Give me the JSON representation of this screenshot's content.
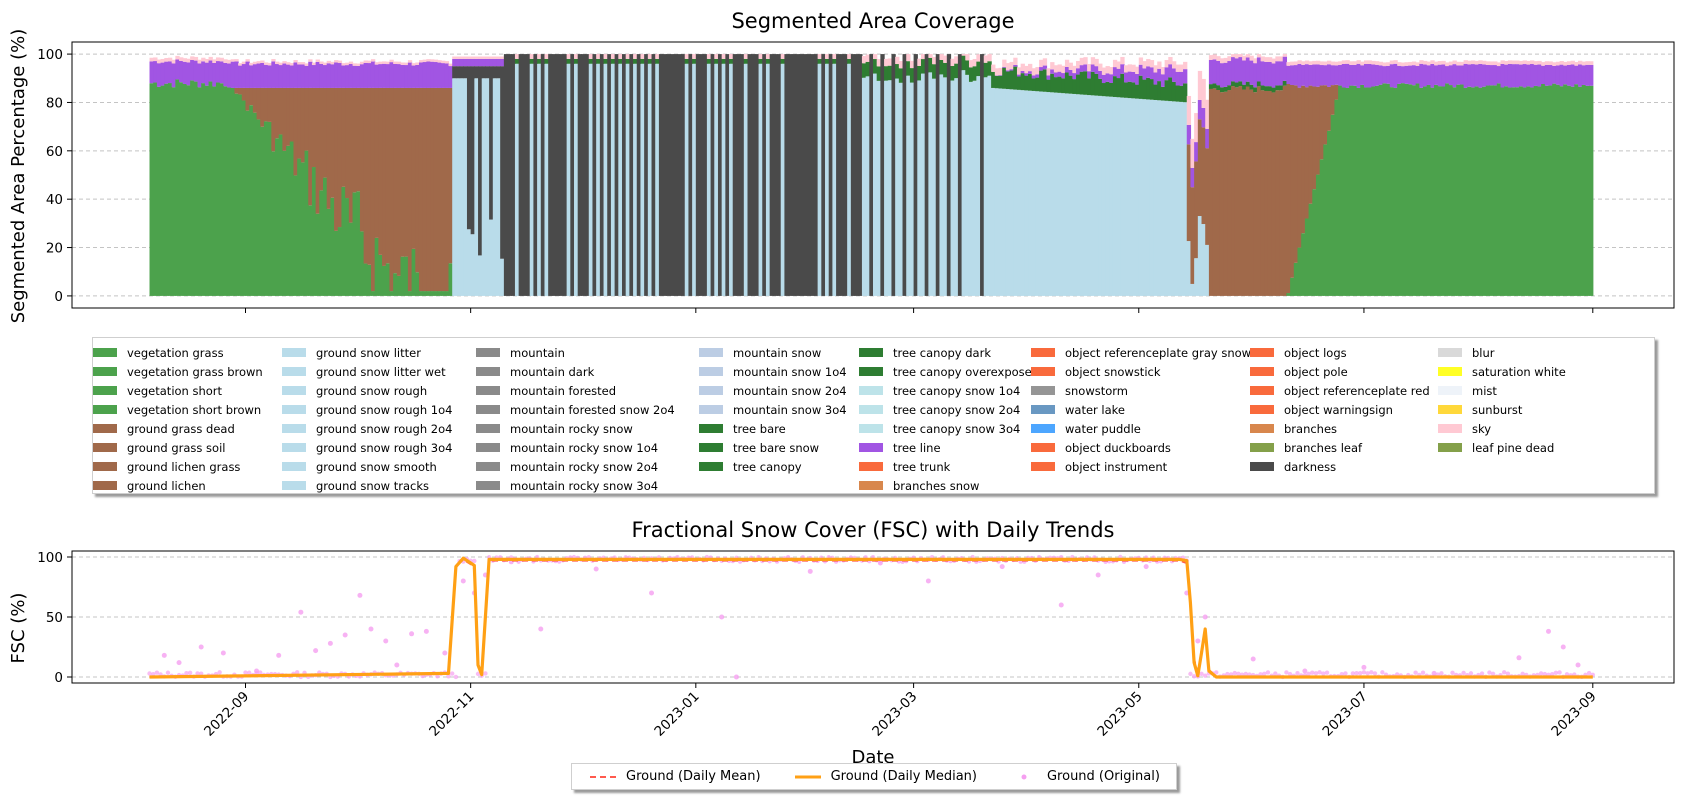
{
  "chart_data": [
    {
      "type": "area",
      "title": "Segmented Area Coverage",
      "xlabel": "",
      "ylabel": "Segmented Area Percentage (%)",
      "ylim": [
        0,
        105
      ],
      "yticks": [
        0,
        20,
        40,
        60,
        80,
        100
      ],
      "xlim": [
        "2022-07-16",
        "2023-09-23"
      ],
      "grid": "y, dashed",
      "legend_placement": "below plot, 8 columns",
      "phases": [
        {
          "start": "2022-08-06",
          "end": "2022-08-28",
          "ground": "vegetation grass",
          "green_top": 88,
          "purple_top": 97
        },
        {
          "start": "2022-08-28",
          "end": "2022-10-27",
          "ground": "vegetation grass → ground grass dead",
          "green_top": 86,
          "purple_top": 96
        },
        {
          "start": "2022-10-27",
          "end": "2022-11-10",
          "ground": "ground snow / darkness mixed"
        },
        {
          "start": "2022-11-10",
          "end": "2023-02-15",
          "ground": "darkness alternating with ground snow"
        },
        {
          "start": "2023-02-15",
          "end": "2023-03-22",
          "ground": "ground snow, darkness decreasing"
        },
        {
          "start": "2023-03-22",
          "end": "2023-05-14",
          "ground": "ground snow",
          "top_band": "tree canopy / tree line"
        },
        {
          "start": "2023-05-14",
          "end": "2023-06-10",
          "ground": "ground grass dead",
          "green_top": 88,
          "purple_top": 98
        },
        {
          "start": "2023-06-10",
          "end": "2023-09-01",
          "ground": "vegetation grass",
          "green_top": 88,
          "purple_top": 97
        }
      ],
      "legend": [
        {
          "label": "vegetation grass",
          "color": "#4ca24c"
        },
        {
          "label": "vegetation grass brown",
          "color": "#4ca24c"
        },
        {
          "label": "vegetation short",
          "color": "#4ca24c"
        },
        {
          "label": "vegetation short brown",
          "color": "#4ca24c"
        },
        {
          "label": "ground grass dead",
          "color": "#a0694a"
        },
        {
          "label": "ground grass soil",
          "color": "#a0694a"
        },
        {
          "label": "ground lichen grass",
          "color": "#a0694a"
        },
        {
          "label": "ground lichen",
          "color": "#a0694a"
        },
        {
          "label": "ground snow litter",
          "color": "#b9dcea"
        },
        {
          "label": "ground snow litter wet",
          "color": "#b9dcea"
        },
        {
          "label": "ground snow rough",
          "color": "#b9dcea"
        },
        {
          "label": "ground snow rough 1o4",
          "color": "#b9dcea"
        },
        {
          "label": "ground snow rough 2o4",
          "color": "#b9dcea"
        },
        {
          "label": "ground snow rough 3o4",
          "color": "#b9dcea"
        },
        {
          "label": "ground snow smooth",
          "color": "#b9dcea"
        },
        {
          "label": "ground snow tracks",
          "color": "#b9dcea"
        },
        {
          "label": "mountain",
          "color": "#8a8a8a"
        },
        {
          "label": "mountain dark",
          "color": "#8a8a8a"
        },
        {
          "label": "mountain forested",
          "color": "#8a8a8a"
        },
        {
          "label": "mountain forested snow 2o4",
          "color": "#8a8a8a"
        },
        {
          "label": "mountain rocky snow",
          "color": "#8a8a8a"
        },
        {
          "label": "mountain rocky snow 1o4",
          "color": "#8a8a8a"
        },
        {
          "label": "mountain rocky snow 2o4",
          "color": "#8a8a8a"
        },
        {
          "label": "mountain rocky snow 3o4",
          "color": "#8a8a8a"
        },
        {
          "label": "mountain snow",
          "color": "#bccde4"
        },
        {
          "label": "mountain snow 1o4",
          "color": "#bccde4"
        },
        {
          "label": "mountain snow 2o4",
          "color": "#bccde4"
        },
        {
          "label": "mountain snow 3o4",
          "color": "#bccde4"
        },
        {
          "label": "tree bare",
          "color": "#2e7d32"
        },
        {
          "label": "tree bare snow",
          "color": "#2e7d32"
        },
        {
          "label": "tree canopy",
          "color": "#2e7d32"
        },
        {
          "label": "tree canopy dark",
          "color": "#2e7d32"
        },
        {
          "label": "tree canopy overexposed",
          "color": "#2e7d32"
        },
        {
          "label": "tree canopy snow 1o4",
          "color": "#bde3e9"
        },
        {
          "label": "tree canopy snow 2o4",
          "color": "#bde3e9"
        },
        {
          "label": "tree canopy snow 3o4",
          "color": "#bde3e9"
        },
        {
          "label": "tree line",
          "color": "#a155e3"
        },
        {
          "label": "tree trunk",
          "color": "#f96a3c"
        },
        {
          "label": "branches snow",
          "color": "#d8874d"
        },
        {
          "label": "object referenceplate gray snow",
          "color": "#f96a3c"
        },
        {
          "label": "object snowstick",
          "color": "#f96a3c"
        },
        {
          "label": "snowstorm",
          "color": "#959595"
        },
        {
          "label": "water lake",
          "color": "#6998c2"
        },
        {
          "label": "water puddle",
          "color": "#4da6ff"
        },
        {
          "label": "object duckboards",
          "color": "#f96a3c"
        },
        {
          "label": "object instrument",
          "color": "#f96a3c"
        },
        {
          "label": "object logs",
          "color": "#f96a3c"
        },
        {
          "label": "object pole",
          "color": "#f96a3c"
        },
        {
          "label": "object referenceplate red",
          "color": "#f96a3c"
        },
        {
          "label": "object warningsign",
          "color": "#f96a3c"
        },
        {
          "label": "branches",
          "color": "#d8874d"
        },
        {
          "label": "branches leaf",
          "color": "#84a04a"
        },
        {
          "label": "darkness",
          "color": "#4a4a4a"
        },
        {
          "label": "blur",
          "color": "#d9d9d9"
        },
        {
          "label": "saturation white",
          "color": "#ffff26"
        },
        {
          "label": "mist",
          "color": "#eef3f9"
        },
        {
          "label": "sunburst",
          "color": "#ffd83a"
        },
        {
          "label": "sky",
          "color": "#ffc9d3"
        },
        {
          "label": "leaf pine dead",
          "color": "#84a04a"
        }
      ]
    },
    {
      "type": "line",
      "title": "Fractional Snow Cover (FSC) with Daily Trends",
      "xlabel": "Date",
      "ylabel": "FSC (%)",
      "ylim": [
        -5,
        105
      ],
      "yticks": [
        0,
        50,
        100
      ],
      "xlim": [
        "2022-07-16",
        "2023-09-23"
      ],
      "xticks": [
        "2022-09",
        "2022-11",
        "2023-01",
        "2023-03",
        "2023-05",
        "2023-07",
        "2023-09"
      ],
      "grid": "y, dashed",
      "legend_placement": "bottom center",
      "series": [
        {
          "name": "Ground (Daily Mean)",
          "color": "#ff5a4e",
          "style": "dashed",
          "x": [
            "2022-08-06",
            "2022-10-26",
            "2022-10-28",
            "2022-10-30",
            "2022-11-01",
            "2022-11-02",
            "2022-11-03",
            "2022-11-04",
            "2022-11-06",
            "2023-05-12",
            "2023-05-14",
            "2023-05-15",
            "2023-05-16",
            "2023-05-17",
            "2023-05-18",
            "2023-05-19",
            "2023-05-20",
            "2023-05-22",
            "2023-09-01"
          ],
          "values": [
            0,
            3,
            92,
            98,
            94,
            90,
            12,
            4,
            97,
            97,
            95,
            60,
            15,
            2,
            22,
            38,
            6,
            0,
            0
          ]
        },
        {
          "name": "Ground (Daily Median)",
          "color": "#ffa015",
          "style": "solid",
          "x": [
            "2022-08-06",
            "2022-10-26",
            "2022-10-28",
            "2022-10-30",
            "2022-11-01",
            "2022-11-02",
            "2022-11-03",
            "2022-11-04",
            "2022-11-06",
            "2023-05-12",
            "2023-05-14",
            "2023-05-15",
            "2023-05-16",
            "2023-05-17",
            "2023-05-18",
            "2023-05-19",
            "2023-05-20",
            "2023-05-22",
            "2023-09-01"
          ],
          "values": [
            0,
            3,
            92,
            99,
            95,
            93,
            10,
            2,
            98,
            98,
            97,
            62,
            12,
            1,
            20,
            40,
            5,
            0,
            0
          ]
        },
        {
          "name": "Ground (Original)",
          "color": "#f59ff0",
          "style": "points",
          "x": [
            "2022-08-10",
            "2022-08-14",
            "2022-08-20",
            "2022-08-26",
            "2022-09-04",
            "2022-09-10",
            "2022-09-16",
            "2022-09-20",
            "2022-09-24",
            "2022-09-28",
            "2022-10-02",
            "2022-10-05",
            "2022-10-09",
            "2022-10-12",
            "2022-10-16",
            "2022-10-20",
            "2022-10-25",
            "2022-10-30",
            "2022-11-02",
            "2022-11-05",
            "2022-11-12",
            "2022-11-20",
            "2022-12-05",
            "2022-12-20",
            "2023-01-08",
            "2023-01-12",
            "2023-02-01",
            "2023-02-20",
            "2023-03-05",
            "2023-03-25",
            "2023-04-10",
            "2023-04-20",
            "2023-05-03",
            "2023-05-14",
            "2023-05-17",
            "2023-05-19",
            "2023-06-01",
            "2023-06-15",
            "2023-07-01",
            "2023-07-20",
            "2023-08-12",
            "2023-08-20",
            "2023-08-24",
            "2023-08-28"
          ],
          "values": [
            18,
            12,
            25,
            20,
            5,
            18,
            54,
            22,
            28,
            35,
            68,
            40,
            30,
            10,
            36,
            38,
            20,
            80,
            70,
            85,
            96,
            40,
            90,
            70,
            50,
            0,
            88,
            95,
            80,
            92,
            60,
            85,
            92,
            70,
            30,
            50,
            15,
            5,
            8,
            3,
            16,
            38,
            25,
            10
          ]
        }
      ]
    }
  ]
}
